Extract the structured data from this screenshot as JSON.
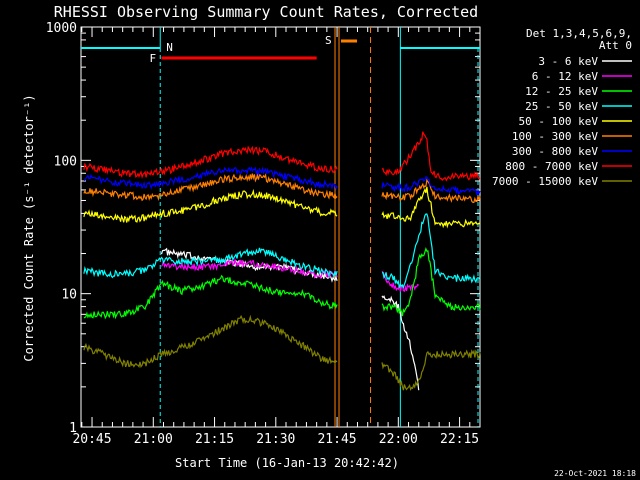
{
  "chart_data": {
    "type": "line",
    "title": "RHESSI Observing Summary Count Rates, Corrected",
    "xlabel": "Start Time (16-Jan-13 20:42:42)",
    "ylabel": "Corrected Count Rate (s⁻¹ detector⁻¹)",
    "xlim_minutes": [
      -2.7,
      95
    ],
    "ylim": [
      1,
      1000
    ],
    "yscale": "log",
    "x_tick_labels": [
      "20:45",
      "21:00",
      "21:15",
      "21:30",
      "21:45",
      "22:00",
      "22:15"
    ],
    "x_tick_minutes": [
      0,
      15,
      30,
      45,
      60,
      75,
      90
    ],
    "y_tick_labels": [
      "1",
      "10",
      "100",
      "1000"
    ],
    "y_tick_values": [
      1,
      10,
      100,
      1000
    ],
    "legend_header": [
      "Det 1,3,4,5,6,9,",
      "Att 0"
    ],
    "legend_placement": "top-right",
    "annotations": {
      "night_label": "N",
      "flare_label": "F",
      "saa_label": "S",
      "night_intervals": [
        [
          -2.7,
          16.7
        ],
        [
          75.5,
          95
        ]
      ],
      "flare_interval": [
        17,
        55
      ],
      "saa_interval": [
        59.5,
        68.2
      ],
      "data_gap": [
        61,
        70
      ]
    },
    "timestamp": "22-Oct-2021 18:18",
    "series": [
      {
        "name": "3 - 6 keV",
        "color": "#ffffff",
        "points": [
          [
            17,
            21
          ],
          [
            20,
            20
          ],
          [
            25,
            19
          ],
          [
            30,
            18
          ],
          [
            35,
            17
          ],
          [
            40,
            16
          ],
          [
            45,
            16
          ],
          [
            50,
            15
          ],
          [
            55,
            14
          ],
          [
            60,
            13
          ]
        ],
        "post": [
          [
            71,
            10
          ],
          [
            73,
            9
          ],
          [
            75,
            8
          ],
          [
            76,
            6
          ],
          [
            77,
            5
          ],
          [
            78,
            4
          ],
          [
            79,
            3
          ],
          [
            80,
            2
          ]
        ]
      },
      {
        "name": "6 - 12 keV",
        "color": "#ff00ff",
        "points": [
          [
            17,
            17
          ],
          [
            20,
            16
          ],
          [
            25,
            16
          ],
          [
            30,
            16
          ],
          [
            35,
            17
          ],
          [
            40,
            17
          ],
          [
            45,
            16
          ],
          [
            50,
            15
          ],
          [
            55,
            14
          ],
          [
            60,
            14
          ]
        ],
        "post": [
          [
            71,
            14
          ],
          [
            73,
            12
          ],
          [
            75,
            11
          ],
          [
            77,
            11
          ],
          [
            79,
            11
          ],
          [
            80,
            12
          ]
        ]
      },
      {
        "name": "12 - 25 keV",
        "color": "#00ff00",
        "points": [
          [
            -2,
            7
          ],
          [
            3,
            7
          ],
          [
            8,
            7
          ],
          [
            13,
            8
          ],
          [
            17,
            12
          ],
          [
            22,
            10.5
          ],
          [
            27,
            11.5
          ],
          [
            32,
            13
          ],
          [
            37,
            12
          ],
          [
            42,
            11
          ],
          [
            47,
            10
          ],
          [
            52,
            10
          ],
          [
            56,
            8.5
          ],
          [
            60,
            8
          ]
        ],
        "post": [
          [
            71,
            8
          ],
          [
            74,
            8
          ],
          [
            76,
            7
          ],
          [
            78,
            9
          ],
          [
            80,
            18
          ],
          [
            82,
            22
          ],
          [
            84,
            10
          ],
          [
            88,
            8
          ],
          [
            92,
            8
          ],
          [
            95,
            8
          ]
        ]
      },
      {
        "name": "25 - 50 keV",
        "color": "#00ffff",
        "points": [
          [
            -2,
            15
          ],
          [
            3,
            14
          ],
          [
            8,
            14
          ],
          [
            13,
            15
          ],
          [
            17,
            18
          ],
          [
            22,
            17.5
          ],
          [
            27,
            17.5
          ],
          [
            32,
            18
          ],
          [
            37,
            20
          ],
          [
            42,
            21
          ],
          [
            47,
            18
          ],
          [
            52,
            16
          ],
          [
            56,
            15
          ],
          [
            60,
            14
          ]
        ],
        "post": [
          [
            71,
            14
          ],
          [
            74,
            13
          ],
          [
            76,
            11
          ],
          [
            78,
            16
          ],
          [
            80,
            28
          ],
          [
            82,
            42
          ],
          [
            84,
            15
          ],
          [
            88,
            13
          ],
          [
            92,
            13
          ],
          [
            95,
            13
          ]
        ]
      },
      {
        "name": "50 - 100 keV",
        "color": "#ffff00",
        "points": [
          [
            -2,
            40
          ],
          [
            3,
            38
          ],
          [
            8,
            36
          ],
          [
            13,
            37
          ],
          [
            17,
            40
          ],
          [
            22,
            42
          ],
          [
            27,
            46
          ],
          [
            32,
            52
          ],
          [
            37,
            56
          ],
          [
            42,
            55
          ],
          [
            47,
            50
          ],
          [
            52,
            44
          ],
          [
            56,
            41
          ],
          [
            60,
            40
          ]
        ],
        "post": [
          [
            71,
            39
          ],
          [
            74,
            38
          ],
          [
            76,
            36
          ],
          [
            78,
            38
          ],
          [
            80,
            50
          ],
          [
            82,
            60
          ],
          [
            84,
            35
          ],
          [
            88,
            33
          ],
          [
            92,
            34
          ],
          [
            95,
            34
          ]
        ]
      },
      {
        "name": "100 - 300 keV",
        "color": "#ff8000",
        "points": [
          [
            -2,
            60
          ],
          [
            3,
            57
          ],
          [
            8,
            55
          ],
          [
            13,
            53
          ],
          [
            17,
            55
          ],
          [
            22,
            60
          ],
          [
            27,
            65
          ],
          [
            32,
            72
          ],
          [
            37,
            76
          ],
          [
            42,
            74
          ],
          [
            47,
            67
          ],
          [
            52,
            60
          ],
          [
            56,
            56
          ],
          [
            60,
            55
          ]
        ],
        "post": [
          [
            71,
            55
          ],
          [
            74,
            54
          ],
          [
            76,
            52
          ],
          [
            78,
            55
          ],
          [
            80,
            62
          ],
          [
            82,
            68
          ],
          [
            84,
            54
          ],
          [
            88,
            52
          ],
          [
            92,
            51
          ],
          [
            95,
            51
          ]
        ]
      },
      {
        "name": "300 - 800 keV",
        "color": "#0000ff",
        "points": [
          [
            -2,
            75
          ],
          [
            3,
            70
          ],
          [
            8,
            67
          ],
          [
            13,
            65
          ],
          [
            17,
            67
          ],
          [
            22,
            72
          ],
          [
            27,
            78
          ],
          [
            32,
            83
          ],
          [
            37,
            85
          ],
          [
            42,
            82
          ],
          [
            47,
            76
          ],
          [
            52,
            70
          ],
          [
            56,
            66
          ],
          [
            60,
            65
          ]
        ],
        "post": [
          [
            71,
            65
          ],
          [
            74,
            63
          ],
          [
            76,
            62
          ],
          [
            78,
            64
          ],
          [
            80,
            68
          ],
          [
            82,
            72
          ],
          [
            84,
            63
          ],
          [
            88,
            60
          ],
          [
            92,
            58
          ],
          [
            95,
            58
          ]
        ]
      },
      {
        "name": "800 - 7000 keV",
        "color": "#ff0000",
        "points": [
          [
            -2,
            90
          ],
          [
            3,
            85
          ],
          [
            8,
            80
          ],
          [
            13,
            78
          ],
          [
            17,
            82
          ],
          [
            22,
            90
          ],
          [
            27,
            100
          ],
          [
            32,
            112
          ],
          [
            37,
            120
          ],
          [
            42,
            118
          ],
          [
            47,
            105
          ],
          [
            52,
            94
          ],
          [
            56,
            87
          ],
          [
            60,
            85
          ]
        ],
        "post": [
          [
            71,
            82
          ],
          [
            74,
            80
          ],
          [
            76,
            90
          ],
          [
            78,
            110
          ],
          [
            80,
            135
          ],
          [
            81,
            155
          ],
          [
            82,
            140
          ],
          [
            83,
            80
          ],
          [
            86,
            75
          ],
          [
            90,
            76
          ],
          [
            95,
            76
          ]
        ]
      },
      {
        "name": "7000 - 15000 keV",
        "color": "#808000",
        "points": [
          [
            -2,
            4
          ],
          [
            3,
            3.5
          ],
          [
            8,
            3
          ],
          [
            13,
            3
          ],
          [
            17,
            3.5
          ],
          [
            22,
            4
          ],
          [
            27,
            4.5
          ],
          [
            32,
            5.5
          ],
          [
            37,
            6.5
          ],
          [
            42,
            6
          ],
          [
            47,
            5
          ],
          [
            52,
            4
          ],
          [
            56,
            3.3
          ],
          [
            60,
            3
          ]
        ],
        "post": [
          [
            71,
            3
          ],
          [
            74,
            2.5
          ],
          [
            76,
            2
          ],
          [
            78,
            2
          ],
          [
            80,
            2.2
          ],
          [
            82,
            3.5
          ],
          [
            84,
            3.5
          ],
          [
            88,
            3.5
          ],
          [
            92,
            3.5
          ],
          [
            95,
            3.5
          ]
        ]
      }
    ]
  }
}
